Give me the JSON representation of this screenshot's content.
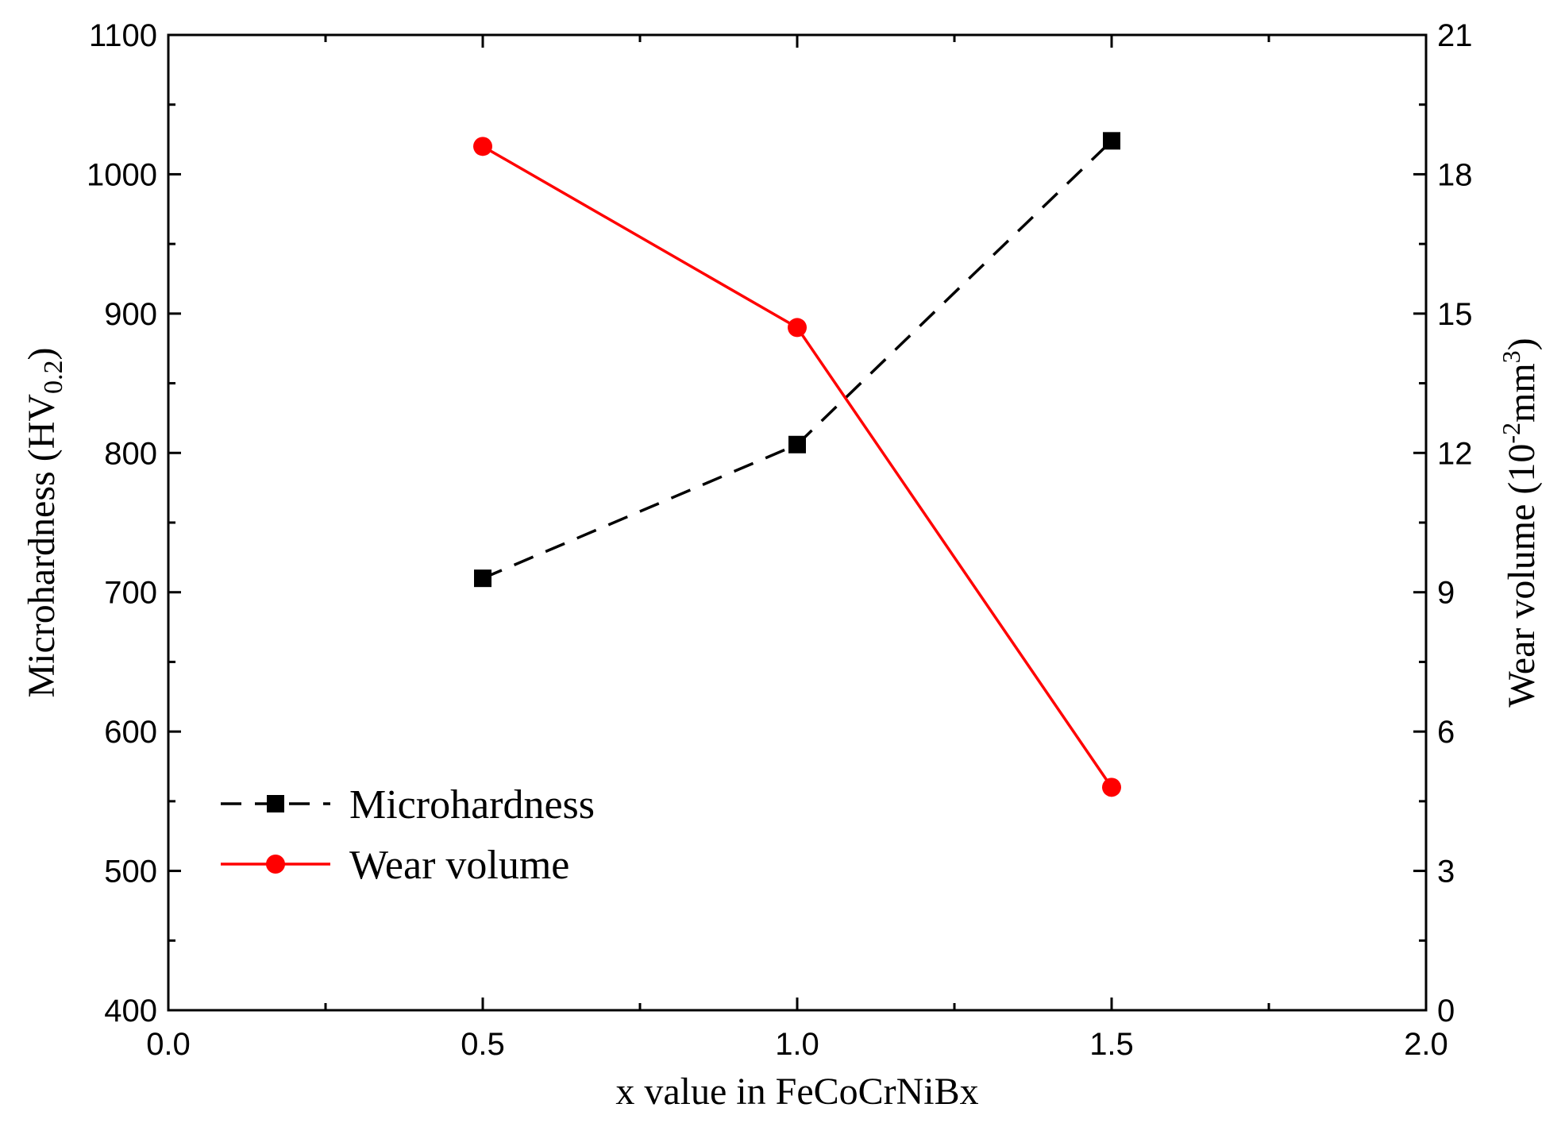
{
  "chart_data": {
    "type": "line",
    "x": [
      0.5,
      1.0,
      1.5
    ],
    "xlabel": "x value in FeCoCrNiBx",
    "xlim": [
      0.0,
      2.0
    ],
    "xticks": [
      "0.0",
      "0.5",
      "1.0",
      "1.5",
      "2.0"
    ],
    "y_left": {
      "label_main": "Microhardness (HV",
      "label_sub": "0.2",
      "label_close": ")",
      "lim": [
        400,
        1100
      ],
      "ticks": [
        "400",
        "500",
        "600",
        "700",
        "800",
        "900",
        "1000",
        "1100"
      ]
    },
    "y_right": {
      "label_main": "Wear volume (10",
      "label_sup1": "-2",
      "label_mid": "mm",
      "label_sup2": "3",
      "label_close": ")",
      "lim": [
        0,
        21
      ],
      "ticks": [
        "0",
        "3",
        "6",
        "9",
        "12",
        "15",
        "18",
        "21"
      ]
    },
    "series": [
      {
        "name": "Microhardness",
        "axis": "left",
        "values": [
          710,
          806,
          1024
        ],
        "color": "#000000",
        "marker": "square",
        "linestyle": "dashed"
      },
      {
        "name": "Wear volume",
        "axis": "right",
        "values": [
          18.6,
          14.7,
          4.8
        ],
        "color": "#ff0000",
        "marker": "circle",
        "linestyle": "solid"
      }
    ],
    "legend": "lower-left"
  }
}
